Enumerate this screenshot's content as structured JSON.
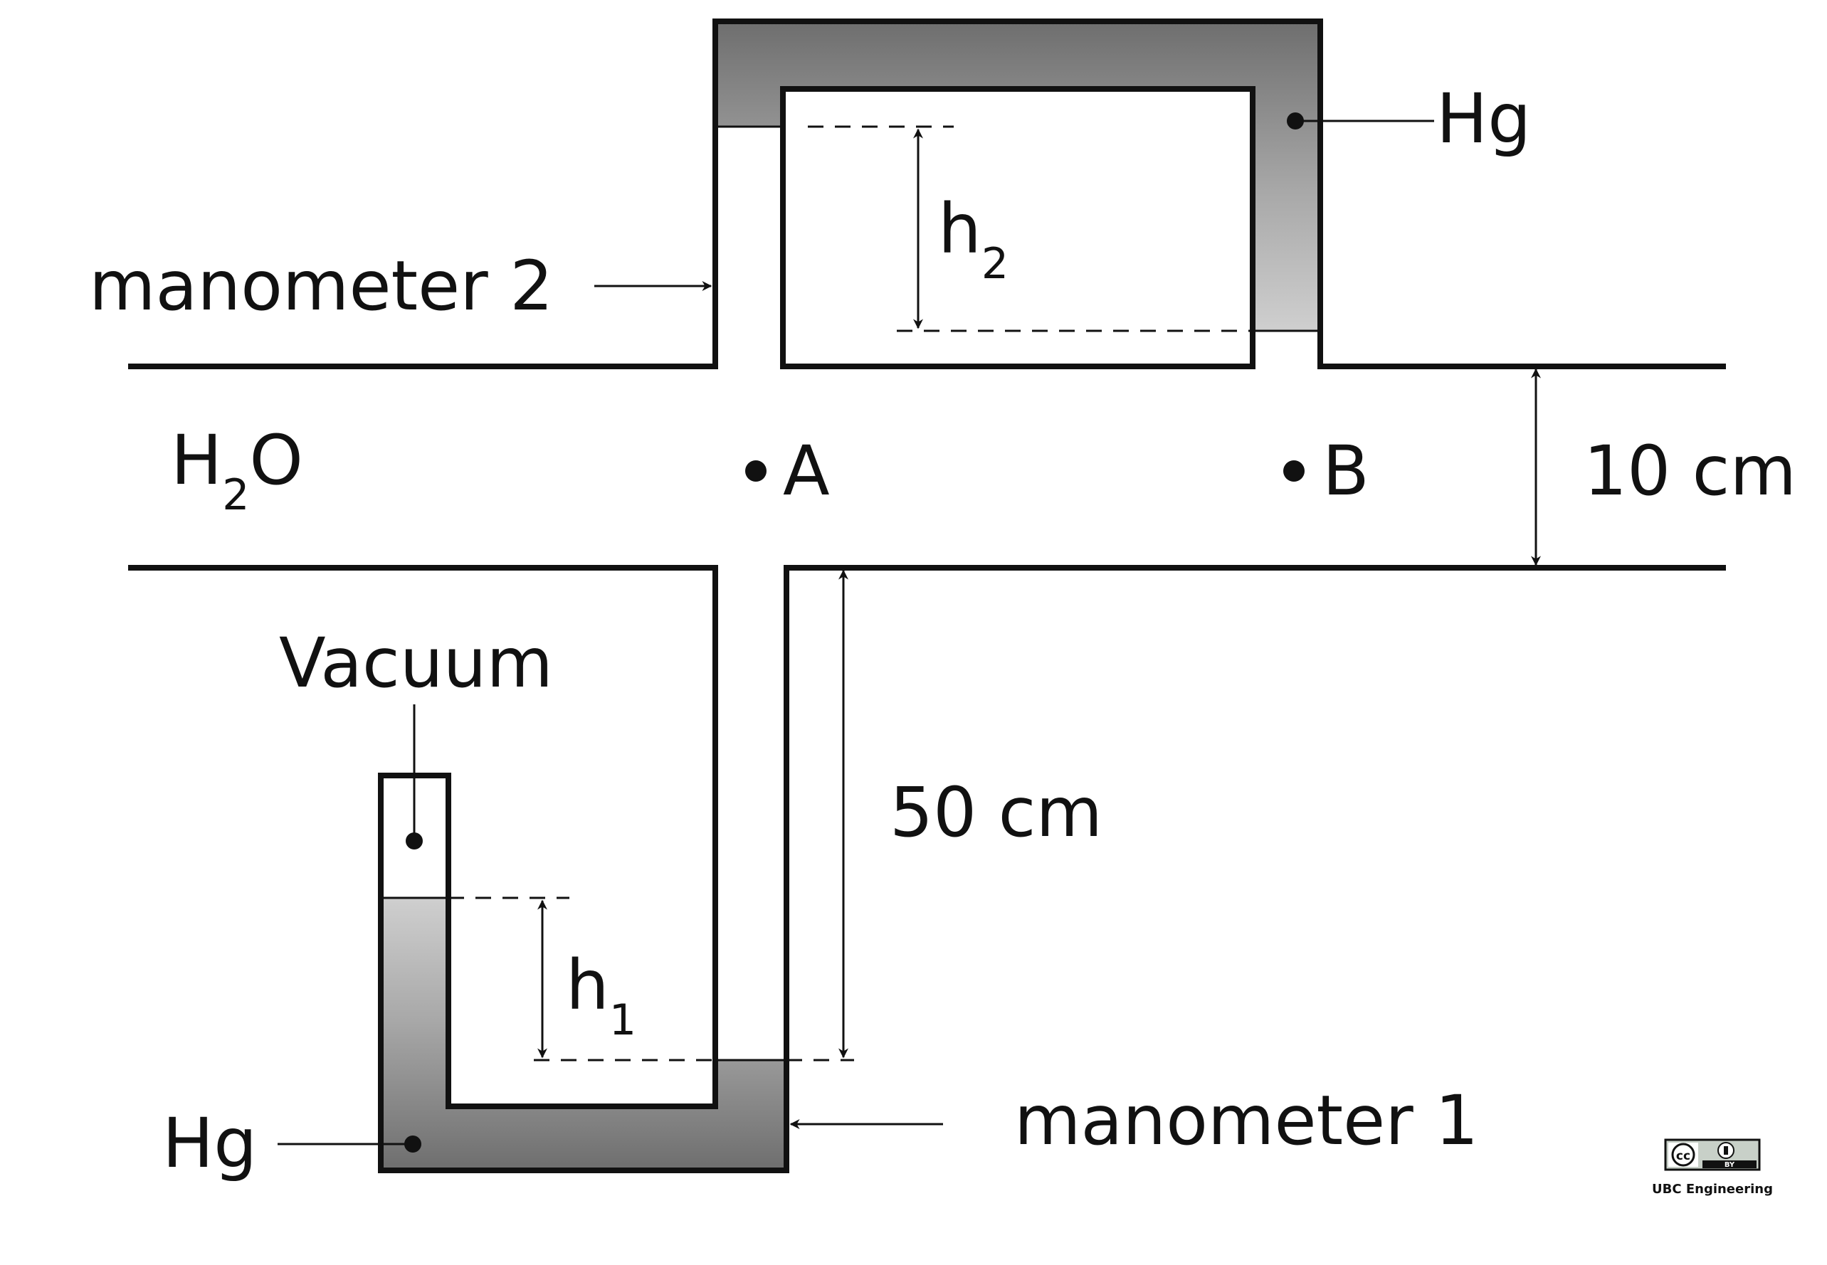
{
  "labels": {
    "manometer2": "manometer 2",
    "manometer1": "manometer 1",
    "fluid": {
      "main": "H",
      "sub": "2",
      "tail": "O"
    },
    "point_a": "A",
    "point_b": "B",
    "vacuum": "Vacuum",
    "hg_top": "Hg",
    "hg_bottom": "Hg",
    "h2": {
      "main": "h",
      "sub": "2"
    },
    "h1": {
      "main": "h",
      "sub": "1"
    },
    "pipe_diameter": "10 cm",
    "riser_height": "50 cm"
  },
  "license": {
    "badge_cc": "cc",
    "badge_by": "BY",
    "credit": "UBC Engineering"
  },
  "colors": {
    "line": "#111111",
    "mercury_dark": "#707070",
    "mercury_mid": "#a6a6a6",
    "mercury_light": "#cccccc"
  }
}
